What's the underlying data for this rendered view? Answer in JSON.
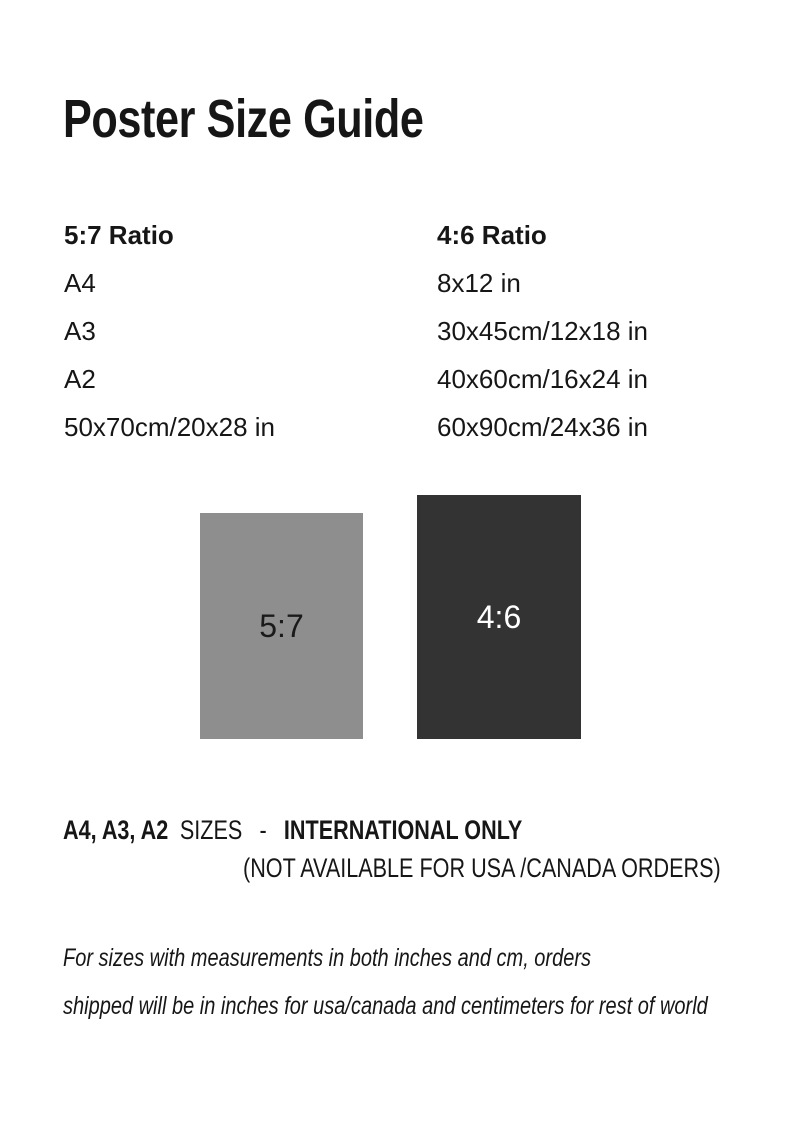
{
  "page": {
    "title": "Poster Size Guide",
    "background_color": "#ffffff",
    "text_color": "#161616"
  },
  "columns": [
    {
      "header": "5:7 Ratio",
      "sizes": [
        "A4",
        "A3",
        "A2",
        "50x70cm/20x28 in"
      ]
    },
    {
      "header": "4:6 Ratio",
      "sizes": [
        "8x12 in",
        "30x45cm/12x18 in",
        "40x60cm/16x24 in",
        "60x90cm/24x36 in"
      ]
    }
  ],
  "previews": [
    {
      "label": "5:7",
      "fill": "#8e8e8e",
      "text_color": "#1a1a1a"
    },
    {
      "label": "4:6",
      "fill": "#333333",
      "text_color": "#ffffff"
    }
  ],
  "availability_note": {
    "sizes_bold": "A4, A3, A2",
    "sizes_word": "SIZES",
    "separator": "-",
    "highlight": "INTERNATIONAL ONLY",
    "line2": "(NOT AVAILABLE FOR USA /CANADA ORDERS)"
  },
  "shipping_note": {
    "line1": "For sizes with measurements in both inches and cm, orders",
    "line2": "shipped will be in inches for usa/canada and centimeters for rest of world"
  }
}
